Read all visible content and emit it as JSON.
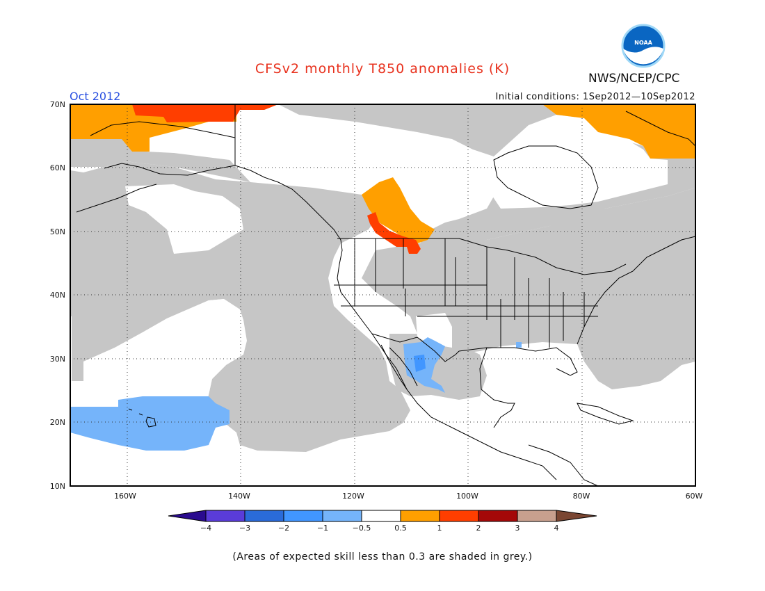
{
  "title": "CFSv2 monthly T850 anomalies (K)",
  "org": "NWS/NCEP/CPC",
  "logo_text": "NOAA",
  "period": "Oct 2012",
  "initial_conditions": "Initial conditions: 1Sep2012—10Sep2012",
  "footer": "(Areas of expected skill less than 0.3 are shaded in grey.)",
  "map": {
    "lon_range": [
      -170,
      -60
    ],
    "lat_range": [
      10,
      70
    ],
    "lat_labels": [
      "70N",
      "60N",
      "50N",
      "40N",
      "30N",
      "20N",
      "10N"
    ],
    "lon_labels": [
      "160W",
      "140W",
      "120W",
      "100W",
      "80W",
      "60W"
    ],
    "colors": {
      "grey": "#c6c6c6",
      "light_blue": "#75b4fa",
      "blue": "#4196ff",
      "orange": "#ff9f00",
      "red": "#ff3e00"
    }
  },
  "colorbar": {
    "tick_labels": [
      "−4",
      "−3",
      "−2",
      "−1",
      "−0.5",
      "0.5",
      "1",
      "2",
      "3",
      "4"
    ],
    "colors": [
      "#2a0b8f",
      "#5a3cd9",
      "#2a6bd9",
      "#4196ff",
      "#75b4fa",
      "#ffffff",
      "#ff9f00",
      "#ff3e00",
      "#a40808",
      "#c8a08e",
      "#7a4632"
    ]
  }
}
